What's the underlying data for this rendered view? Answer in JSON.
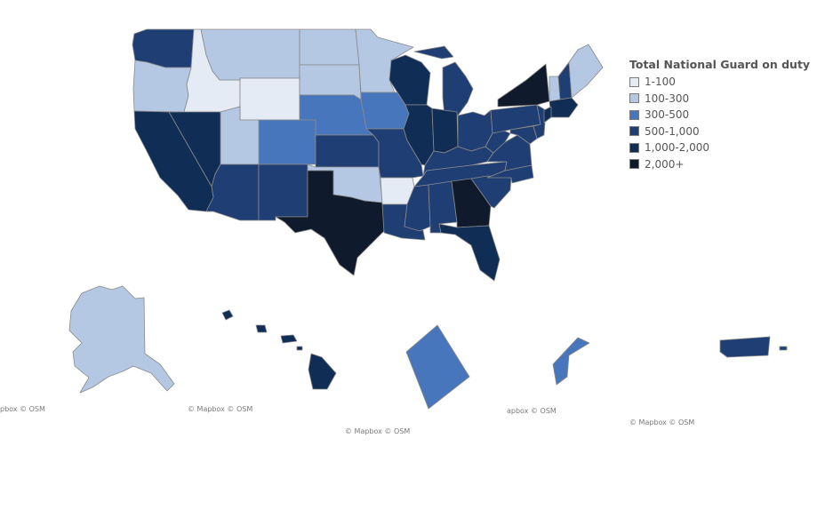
{
  "legend": {
    "title": "Total National Guard on duty",
    "bins": [
      {
        "label": "1-100",
        "color": "#e4ebf5"
      },
      {
        "label": "100-300",
        "color": "#b4c8e3"
      },
      {
        "label": "300-500",
        "color": "#4876bc"
      },
      {
        "label": "500-1,000",
        "color": "#1e3e74"
      },
      {
        "label": "1,000-2,000",
        "color": "#0f2d55"
      },
      {
        "label": "2,000+",
        "color": "#0f1a2c"
      }
    ]
  },
  "credits": {
    "alaska": "pbox © OSM",
    "hawaii": "© Mapbox © OSM",
    "dc": "© Mapbox © OSM",
    "guam": "apbox © OSM",
    "puerto_rico": "© Mapbox © OSM"
  },
  "states": {
    "WA": "500-1,000",
    "OR": "100-300",
    "ID": "1-100",
    "MT": "100-300",
    "WY": "1-100",
    "ND": "100-300",
    "SD": "100-300",
    "MN": "100-300",
    "WI": "1,000-2,000",
    "MI": "500-1,000",
    "NY": "2,000+",
    "VT": "100-300",
    "NH": "500-1,000",
    "ME": "100-300",
    "MA": "1,000-2,000",
    "CT": "1,000-2,000",
    "CA": "1,000-2,000",
    "NV": "1,000-2,000",
    "UT": "100-300",
    "CO": "300-500",
    "NE": "300-500",
    "IA": "300-500",
    "IL": "1,000-2,000",
    "IN": "1,000-2,000",
    "OH": "500-1,000",
    "PA": "500-1,000",
    "NJ": "500-1,000",
    "AZ": "500-1,000",
    "NM": "500-1,000",
    "KS": "500-1,000",
    "MO": "500-1,000",
    "KY": "500-1,000",
    "WV": "500-1,000",
    "VA": "500-1,000",
    "MD": "500-1,000",
    "TN": "500-1,000",
    "NC": "500-1,000",
    "OK": "100-300",
    "AR": "1-100",
    "TX": "2,000+",
    "LA": "500-1,000",
    "MS": "500-1,000",
    "AL": "500-1,000",
    "GA": "2,000+",
    "SC": "500-1,000",
    "FL": "1,000-2,000",
    "AK": "100-300",
    "HI": "1,000-2,000",
    "DC": "300-500",
    "GU": "300-500",
    "PR": "500-1,000"
  }
}
